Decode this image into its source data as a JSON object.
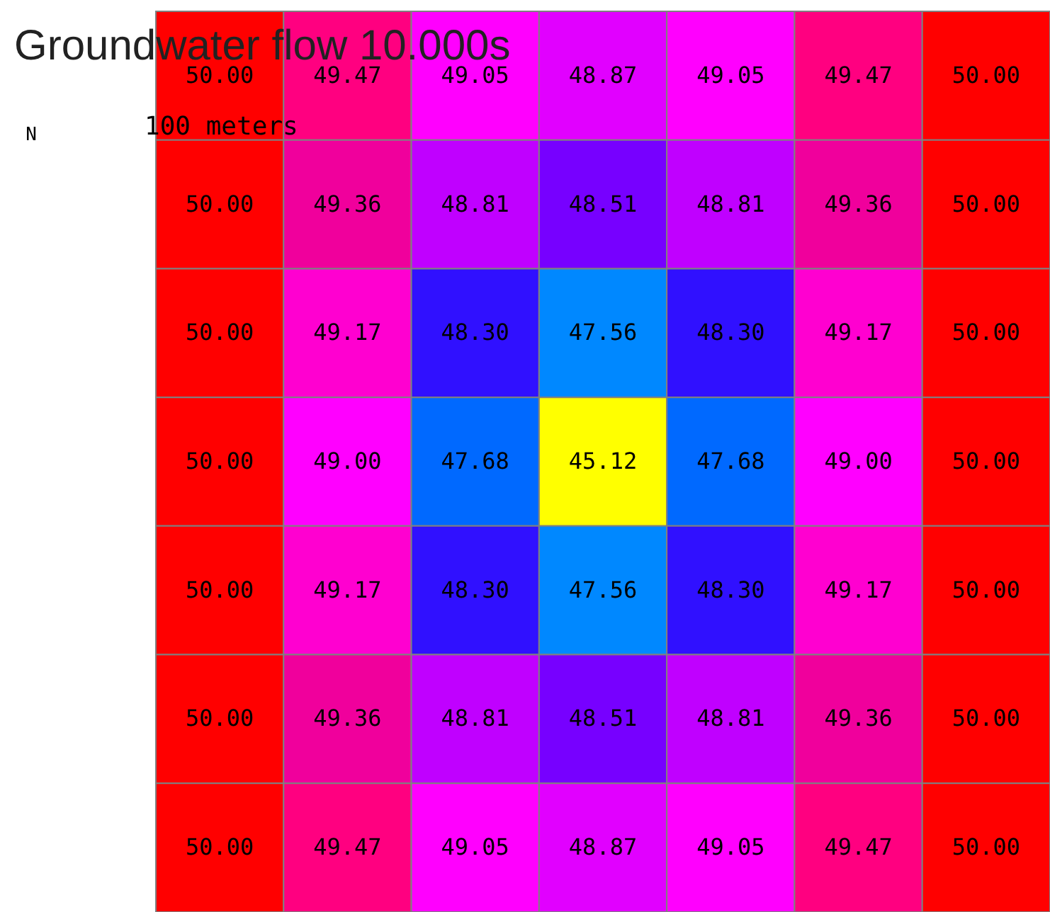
{
  "chart_data": {
    "type": "heatmap",
    "title": "Groundwater flow 10.000s",
    "annotations": [
      "N",
      "100 meters"
    ],
    "categories": [
      null,
      null,
      null,
      null,
      null,
      null,
      null
    ],
    "y_categories": [
      null,
      null,
      null,
      null,
      null,
      null,
      null
    ],
    "cells": [
      [
        50.0,
        49.47,
        49.05,
        48.87,
        49.05,
        49.47,
        50.0
      ],
      [
        50.0,
        49.36,
        48.81,
        48.51,
        48.81,
        49.36,
        50.0
      ],
      [
        50.0,
        49.17,
        48.3,
        47.56,
        48.3,
        49.17,
        50.0
      ],
      [
        50.0,
        49.0,
        47.68,
        45.12,
        47.68,
        49.0,
        50.0
      ],
      [
        50.0,
        49.17,
        48.3,
        47.56,
        48.3,
        49.17,
        50.0
      ],
      [
        50.0,
        49.36,
        48.81,
        48.51,
        48.81,
        49.36,
        50.0
      ],
      [
        50.0,
        49.47,
        49.05,
        48.87,
        49.05,
        49.47,
        50.0
      ]
    ],
    "cell_labels": [
      [
        "50.00",
        "49.47",
        "49.05",
        "48.87",
        "49.05",
        "49.47",
        "50.00"
      ],
      [
        "50.00",
        "49.36",
        "48.81",
        "48.51",
        "48.81",
        "49.36",
        "50.00"
      ],
      [
        "50.00",
        "49.17",
        "48.30",
        "47.56",
        "48.30",
        "49.17",
        "50.00"
      ],
      [
        "50.00",
        "49.00",
        "47.68",
        "45.12",
        "47.68",
        "49.00",
        "50.00"
      ],
      [
        "50.00",
        "49.17",
        "48.30",
        "47.56",
        "48.30",
        "49.17",
        "50.00"
      ],
      [
        "50.00",
        "49.36",
        "48.81",
        "48.51",
        "48.81",
        "49.36",
        "50.00"
      ],
      [
        "50.00",
        "49.47",
        "49.05",
        "48.87",
        "49.05",
        "49.47",
        "50.00"
      ]
    ]
  }
}
